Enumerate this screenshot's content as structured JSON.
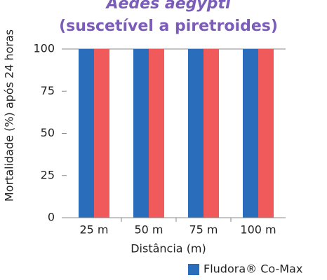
{
  "chart_data": {
    "type": "bar",
    "title": "Aedes aegypti",
    "subtitle": "(suscetível a piretroides)",
    "y_label": "Mortalidade (%) após 24 horas",
    "x_label": "Distância (m)",
    "categories": [
      "25 m",
      "50 m",
      "75 m",
      "100 m"
    ],
    "series": [
      {
        "name": "Fludora® Co-Max",
        "color": "#2a6ebb",
        "values": [
          100,
          100,
          100,
          100
        ]
      },
      {
        "color": "#f05a5a",
        "values": [
          100,
          100,
          100,
          100
        ]
      }
    ],
    "ylim": [
      0,
      100
    ],
    "yticks": [
      0,
      25,
      50,
      75,
      100
    ],
    "grid": false,
    "legend": "bottom-right"
  }
}
